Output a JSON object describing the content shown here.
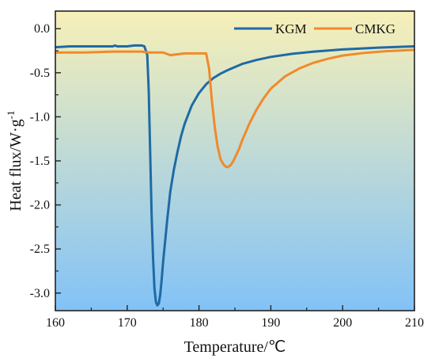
{
  "colors": {
    "bg_top": "#f7f0b8",
    "bg_bottom": "#82c2f7",
    "kgm": "#1f6aa5",
    "cmkg": "#f08a2a"
  },
  "chart_data": {
    "type": "line",
    "xlabel": "Temperature/℃",
    "ylabel": "Heat flux/W·g",
    "ylabel_sup": "-1",
    "xlim": [
      160,
      210
    ],
    "ylim": [
      -3.2,
      0.2
    ],
    "xticks": [
      160,
      170,
      180,
      190,
      200,
      210
    ],
    "yticks": [
      0.0,
      -0.5,
      -1.0,
      -1.5,
      -2.0,
      -2.5,
      -3.0
    ],
    "xtick_labels": [
      "160",
      "170",
      "180",
      "190",
      "200",
      "210"
    ],
    "ytick_labels": [
      "0.0",
      "-0.5",
      "-1.0",
      "-1.5",
      "-2.0",
      "-2.5",
      "-3.0"
    ],
    "legend_position": "top-right",
    "grid": false,
    "series": [
      {
        "name": "KGM",
        "x": [
          160,
          162,
          164,
          166,
          168,
          168.3,
          168.6,
          170,
          171,
          172,
          172.4,
          172.8,
          173,
          173.2,
          173.4,
          173.6,
          173.8,
          174,
          174.2,
          174.4,
          174.6,
          174.8,
          175,
          175.3,
          175.6,
          176,
          176.5,
          177,
          177.5,
          178,
          179,
          180,
          181,
          182,
          183,
          184,
          186,
          188,
          190,
          193,
          196,
          200,
          205,
          210
        ],
        "y": [
          -0.21,
          -0.2,
          -0.2,
          -0.2,
          -0.2,
          -0.19,
          -0.2,
          -0.2,
          -0.19,
          -0.19,
          -0.2,
          -0.3,
          -0.7,
          -1.4,
          -2.1,
          -2.6,
          -2.95,
          -3.1,
          -3.14,
          -3.12,
          -3.02,
          -2.85,
          -2.65,
          -2.4,
          -2.15,
          -1.85,
          -1.6,
          -1.4,
          -1.22,
          -1.08,
          -0.87,
          -0.73,
          -0.63,
          -0.56,
          -0.51,
          -0.47,
          -0.4,
          -0.355,
          -0.32,
          -0.285,
          -0.26,
          -0.235,
          -0.215,
          -0.2
        ]
      },
      {
        "name": "CMKG",
        "x": [
          160,
          164,
          168,
          172,
          173,
          174,
          175,
          176,
          177,
          178,
          179,
          180,
          181,
          181.4,
          181.8,
          182.2,
          182.6,
          183,
          183.4,
          183.8,
          184,
          184.4,
          184.8,
          185.2,
          185.6,
          186,
          187,
          188,
          189,
          190,
          192,
          194,
          196,
          198,
          200,
          203,
          206,
          210
        ],
        "y": [
          -0.27,
          -0.27,
          -0.26,
          -0.26,
          -0.27,
          -0.27,
          -0.27,
          -0.3,
          -0.29,
          -0.28,
          -0.28,
          -0.28,
          -0.28,
          -0.45,
          -0.82,
          -1.12,
          -1.34,
          -1.48,
          -1.54,
          -1.57,
          -1.57,
          -1.55,
          -1.5,
          -1.43,
          -1.36,
          -1.27,
          -1.08,
          -0.92,
          -0.79,
          -0.68,
          -0.54,
          -0.45,
          -0.385,
          -0.34,
          -0.305,
          -0.275,
          -0.255,
          -0.24
        ]
      }
    ]
  }
}
